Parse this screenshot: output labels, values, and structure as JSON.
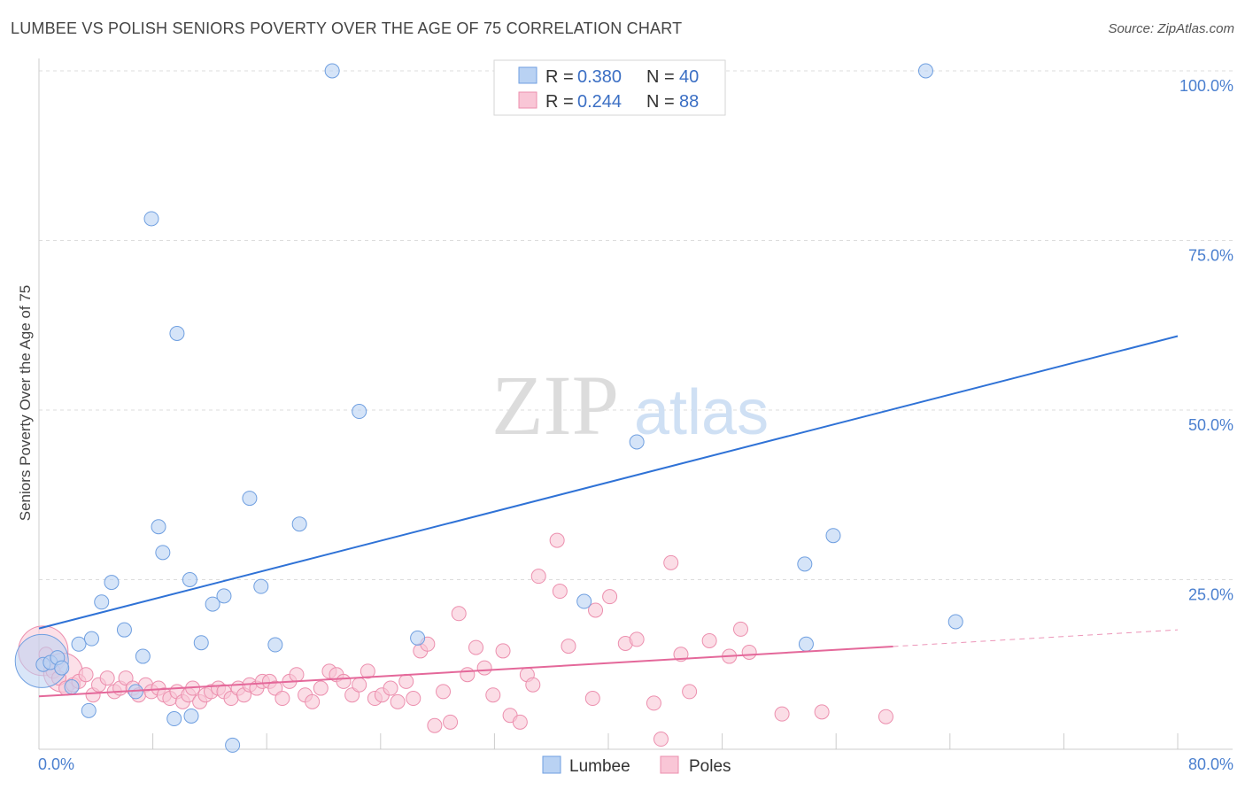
{
  "header": {
    "title": "LUMBEE VS POLISH SENIORS POVERTY OVER THE AGE OF 75 CORRELATION CHART",
    "source": "Source: ZipAtlas.com"
  },
  "watermark": {
    "zip": "ZIP",
    "atlas": "atlas"
  },
  "legend": {
    "items": [
      {
        "r_label": "R =",
        "r_value": "0.380",
        "n_label": "N =",
        "n_value": "40"
      },
      {
        "r_label": "R =",
        "r_value": "0.244",
        "n_label": "N =",
        "n_value": "88"
      }
    ]
  },
  "bottom_legend": {
    "lumbee": "Lumbee",
    "poles": "Poles"
  },
  "colors": {
    "lumbee_fill": "#b9d2f3",
    "lumbee_stroke": "#6f9fe0",
    "lumbee_line": "#2f72d6",
    "poles_fill": "#f9c6d6",
    "poles_stroke": "#ec8fae",
    "poles_line": "#e4689a",
    "tick_label": "#4a7fcf"
  },
  "chart_data": {
    "type": "scatter",
    "title": "LUMBEE VS POLISH SENIORS POVERTY OVER THE AGE OF 75 CORRELATION CHART",
    "xlabel": "",
    "ylabel": "Seniors Poverty Over the Age of 75",
    "xlim": [
      0,
      80
    ],
    "ylim": [
      0,
      105
    ],
    "x_tick_labels": [
      {
        "value": 0,
        "label": "0.0%"
      },
      {
        "value": 80,
        "label": "80.0%"
      }
    ],
    "y_tick_labels": [
      {
        "value": 25,
        "label": "25.0%"
      },
      {
        "value": 50,
        "label": "50.0%"
      },
      {
        "value": 75,
        "label": "75.0%"
      },
      {
        "value": 100,
        "label": "100.0%"
      }
    ],
    "grid": true,
    "legend_position": "top-center",
    "series": [
      {
        "name": "Lumbee",
        "r": 0.38,
        "n": 40,
        "trend": {
          "x": [
            0,
            80
          ],
          "y": [
            17.8,
            60.9
          ],
          "dashed_from": null
        },
        "points": [
          [
            0.3,
            12.5
          ],
          [
            0.8,
            12.8
          ],
          [
            1.3,
            13.5
          ],
          [
            1.6,
            12.0
          ],
          [
            2.3,
            9.2
          ],
          [
            2.8,
            15.5
          ],
          [
            3.5,
            5.7
          ],
          [
            3.7,
            16.3
          ],
          [
            4.4,
            21.7
          ],
          [
            5.1,
            24.6
          ],
          [
            6.0,
            17.6
          ],
          [
            6.8,
            8.5
          ],
          [
            7.3,
            13.7
          ],
          [
            7.9,
            78.2
          ],
          [
            8.4,
            32.8
          ],
          [
            8.7,
            29.0
          ],
          [
            9.5,
            4.5
          ],
          [
            9.7,
            61.3
          ],
          [
            10.6,
            25.0
          ],
          [
            10.7,
            4.9
          ],
          [
            11.4,
            15.7
          ],
          [
            12.2,
            21.4
          ],
          [
            13.0,
            22.6
          ],
          [
            13.6,
            0.6
          ],
          [
            14.8,
            37.0
          ],
          [
            15.6,
            24.0
          ],
          [
            16.6,
            15.4
          ],
          [
            18.3,
            33.2
          ],
          [
            20.6,
            100.0
          ],
          [
            22.5,
            49.8
          ],
          [
            26.6,
            16.4
          ],
          [
            38.3,
            21.8
          ],
          [
            42.0,
            45.3
          ],
          [
            53.8,
            27.3
          ],
          [
            53.9,
            15.5
          ],
          [
            55.8,
            31.5
          ],
          [
            62.3,
            100.0
          ],
          [
            64.4,
            18.8
          ]
        ],
        "big_points": [
          [
            0.2,
            13.0,
            30
          ]
        ]
      },
      {
        "name": "Poles",
        "r": 0.244,
        "n": 88,
        "trend": {
          "x": [
            0,
            80
          ],
          "y": [
            7.8,
            17.6
          ],
          "dashed_from": 60
        },
        "points": [
          [
            0.5,
            14.0
          ],
          [
            1.0,
            11.5
          ],
          [
            1.4,
            10.5
          ],
          [
            1.9,
            9.0
          ],
          [
            2.4,
            9.5
          ],
          [
            2.8,
            10.0
          ],
          [
            3.3,
            11.0
          ],
          [
            3.8,
            8.0
          ],
          [
            4.2,
            9.5
          ],
          [
            4.8,
            10.5
          ],
          [
            5.3,
            8.5
          ],
          [
            5.7,
            9.0
          ],
          [
            6.1,
            10.5
          ],
          [
            6.6,
            9.0
          ],
          [
            7.0,
            8.0
          ],
          [
            7.5,
            9.5
          ],
          [
            7.9,
            8.5
          ],
          [
            8.4,
            9.0
          ],
          [
            8.8,
            8.0
          ],
          [
            9.2,
            7.5
          ],
          [
            9.7,
            8.5
          ],
          [
            10.1,
            7.0
          ],
          [
            10.5,
            8.0
          ],
          [
            10.8,
            9.0
          ],
          [
            11.3,
            7.0
          ],
          [
            11.7,
            8.0
          ],
          [
            12.1,
            8.5
          ],
          [
            12.6,
            9.0
          ],
          [
            13.0,
            8.5
          ],
          [
            13.5,
            7.5
          ],
          [
            14.0,
            9.0
          ],
          [
            14.4,
            8.0
          ],
          [
            14.8,
            9.5
          ],
          [
            15.3,
            9.0
          ],
          [
            15.7,
            10.0
          ],
          [
            16.2,
            10.0
          ],
          [
            16.6,
            9.0
          ],
          [
            17.1,
            7.5
          ],
          [
            17.6,
            10.0
          ],
          [
            18.1,
            11.0
          ],
          [
            18.7,
            8.0
          ],
          [
            19.2,
            7.0
          ],
          [
            19.8,
            9.0
          ],
          [
            20.4,
            11.5
          ],
          [
            20.9,
            11.0
          ],
          [
            21.4,
            10.0
          ],
          [
            22.0,
            8.0
          ],
          [
            22.5,
            9.5
          ],
          [
            23.1,
            11.5
          ],
          [
            23.6,
            7.5
          ],
          [
            24.1,
            8.0
          ],
          [
            24.7,
            9.0
          ],
          [
            25.2,
            7.0
          ],
          [
            25.8,
            10.0
          ],
          [
            26.3,
            7.5
          ],
          [
            26.8,
            14.5
          ],
          [
            27.3,
            15.5
          ],
          [
            27.8,
            3.5
          ],
          [
            28.4,
            8.5
          ],
          [
            28.9,
            4.0
          ],
          [
            29.5,
            20.0
          ],
          [
            30.1,
            11.0
          ],
          [
            30.7,
            15.0
          ],
          [
            31.3,
            12.0
          ],
          [
            31.9,
            8.0
          ],
          [
            32.6,
            14.5
          ],
          [
            33.1,
            5.0
          ],
          [
            33.8,
            4.0
          ],
          [
            34.3,
            11.0
          ],
          [
            34.7,
            9.5
          ],
          [
            35.1,
            25.5
          ],
          [
            36.4,
            30.8
          ],
          [
            36.6,
            23.3
          ],
          [
            37.2,
            15.2
          ],
          [
            38.9,
            7.5
          ],
          [
            39.1,
            20.5
          ],
          [
            40.1,
            22.5
          ],
          [
            41.2,
            15.6
          ],
          [
            42.0,
            16.2
          ],
          [
            43.2,
            6.8
          ],
          [
            43.7,
            1.5
          ],
          [
            44.4,
            27.5
          ],
          [
            45.1,
            14.0
          ],
          [
            45.7,
            8.5
          ],
          [
            47.1,
            16.0
          ],
          [
            48.5,
            13.7
          ],
          [
            49.3,
            17.7
          ],
          [
            49.9,
            14.3
          ],
          [
            52.2,
            5.2
          ],
          [
            55.0,
            5.5
          ],
          [
            59.5,
            4.8
          ]
        ],
        "big_points": [
          [
            0.3,
            14.5,
            28
          ],
          [
            1.7,
            11.3,
            22
          ]
        ]
      }
    ]
  }
}
